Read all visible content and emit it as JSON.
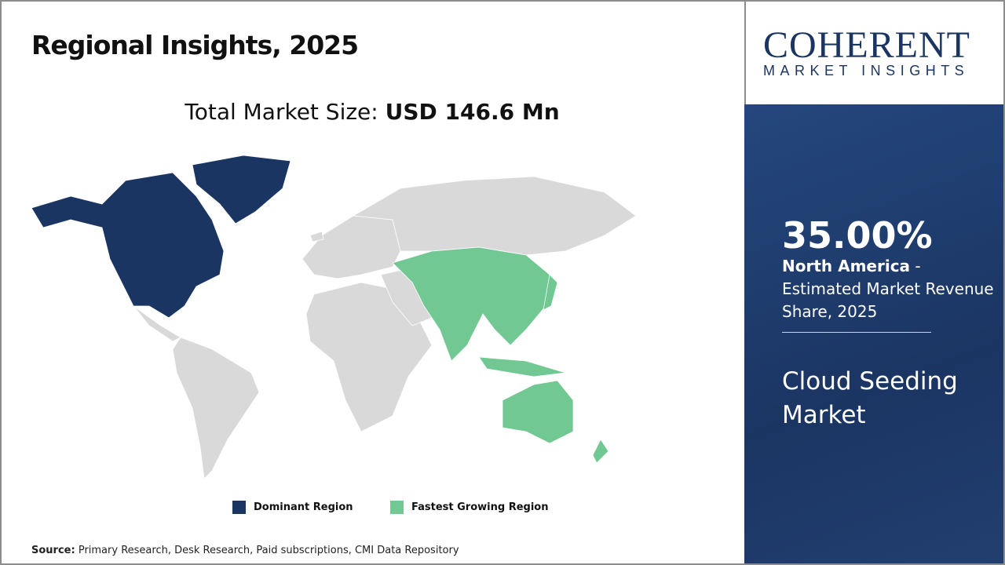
{
  "header": {
    "title": "Regional Insights, 2025"
  },
  "market_size": {
    "label": "Total Market Size:",
    "value": "USD 146.6 Mn"
  },
  "legend": [
    {
      "label": "Dominant Region",
      "color": "#1b3563"
    },
    {
      "label": "Fastest Growing Region",
      "color": "#72c893"
    }
  ],
  "map": {
    "other_color": "#d9d9d9"
  },
  "source": {
    "label": "Source:",
    "text": "Primary Research, Desk Research, Paid subscriptions, CMI Data Repository"
  },
  "logo": {
    "name": "COHERENT",
    "tagline": "MARKET INSIGHTS"
  },
  "panel": {
    "share": "35.00%",
    "region": "North America",
    "desc": " - Estimated Market Revenue Share, 2025",
    "market_name": "Cloud Seeding Market"
  }
}
